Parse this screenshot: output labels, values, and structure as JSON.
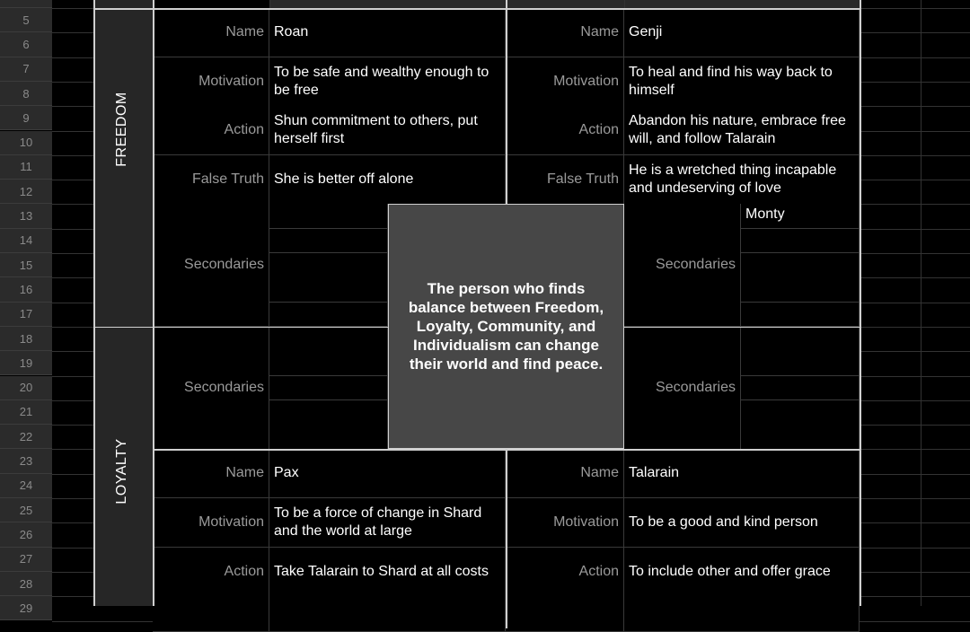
{
  "row_numbers": [
    5,
    6,
    7,
    8,
    9,
    10,
    11,
    12,
    13,
    14,
    15,
    16,
    17,
    18,
    19,
    20,
    21,
    22,
    23,
    24,
    25,
    26,
    27,
    28,
    29
  ],
  "categories": {
    "freedom": "FREEDOM",
    "loyalty": "LOYALTY"
  },
  "theme": "The person who finds balance between Freedom, Loyalty, Community, and Individualism can change their world and find peace.",
  "freedom_left": {
    "name_label": "Name",
    "name": "Roan",
    "motivation_label": "Motivation",
    "motivation": "To be safe and wealthy enough to be free",
    "action_label": "Action",
    "action": "Shun commitment to others, put herself first",
    "false_truth_label": "False Truth",
    "false_truth": "She is better off alone",
    "secondaries_label": "Secondaries",
    "secondaries": [
      "",
      "",
      "",
      "",
      ""
    ]
  },
  "freedom_right": {
    "name_label": "Name",
    "name": "Genji",
    "motivation_label": "Motivation",
    "motivation": "To heal and find his way back to himself",
    "action_label": "Action",
    "action": "Abandon his nature, embrace free will, and follow Talarain",
    "false_truth_label": "False Truth",
    "false_truth": "He is a wretched thing incapable and undeserving of love",
    "secondaries_label": "Secondaries",
    "secondaries": [
      "Monty",
      "",
      "",
      "",
      ""
    ]
  },
  "loyalty_left": {
    "secondaries_label": "Secondaries",
    "secondaries": [
      "",
      "",
      "",
      "",
      ""
    ],
    "name_label": "Name",
    "name": "Pax",
    "motivation_label": "Motivation",
    "motivation": "To be a force of change in Shard and the world at large",
    "action_label": "Action",
    "action": "Take Talarain to Shard at all costs"
  },
  "loyalty_right": {
    "secondaries_label": "Secondaries",
    "secondaries": [
      "",
      "",
      "",
      "",
      ""
    ],
    "name_label": "Name",
    "name": "Talarain",
    "motivation_label": "Motivation",
    "motivation": "To be a good and kind person",
    "action_label": "Action",
    "action": "To include other and offer grace"
  }
}
